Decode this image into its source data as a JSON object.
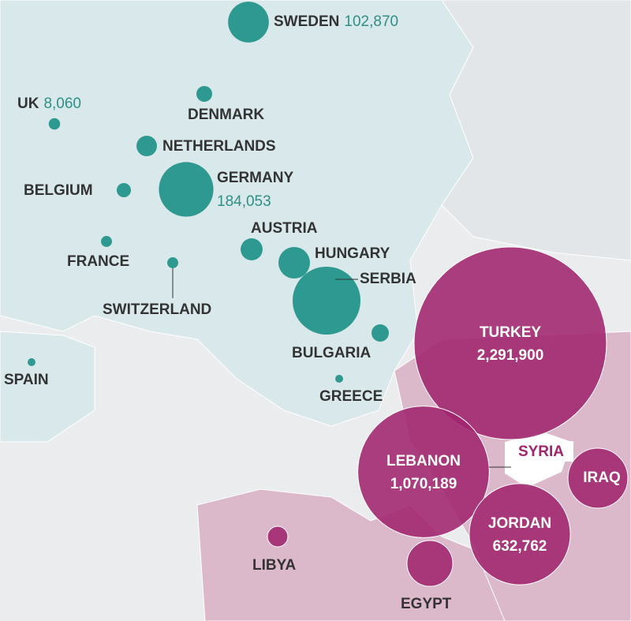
{
  "bubbles": [
    {
      "name": "SWEDEN",
      "value": 102870,
      "label": "102,870"
    },
    {
      "name": "UK",
      "value": 8060,
      "label": "8,060"
    },
    {
      "name": "DENMARK",
      "value": 15400
    },
    {
      "name": "NETHERLANDS",
      "value": 26000
    },
    {
      "name": "BELGIUM",
      "value": 12500
    },
    {
      "name": "GERMANY",
      "value": 184053,
      "label": "184,053"
    },
    {
      "name": "FRANCE",
      "value": 7500
    },
    {
      "name": "SWITZERLAND",
      "value": 7500
    },
    {
      "name": "AUSTRIA",
      "value": 30000
    },
    {
      "name": "HUNGARY",
      "value": 61500
    },
    {
      "name": "SERBIA",
      "value": 285000
    },
    {
      "name": "BULGARIA",
      "value": 18600
    },
    {
      "name": "GREECE",
      "value": 3850
    },
    {
      "name": "SPAIN",
      "value": 3850
    },
    {
      "name": "TURKEY",
      "value": 2291900,
      "label": "2,291,900"
    },
    {
      "name": "LEBANON",
      "value": 1070189,
      "label": "1,070,189"
    },
    {
      "name": "IRAQ",
      "value": 222000
    },
    {
      "name": "JORDAN",
      "value": 632762,
      "label": "632,762"
    },
    {
      "name": "LIBYA",
      "value": 26000
    },
    {
      "name": "EGYPT",
      "value": 130000
    }
  ],
  "syria_label": "SYRIA"
}
